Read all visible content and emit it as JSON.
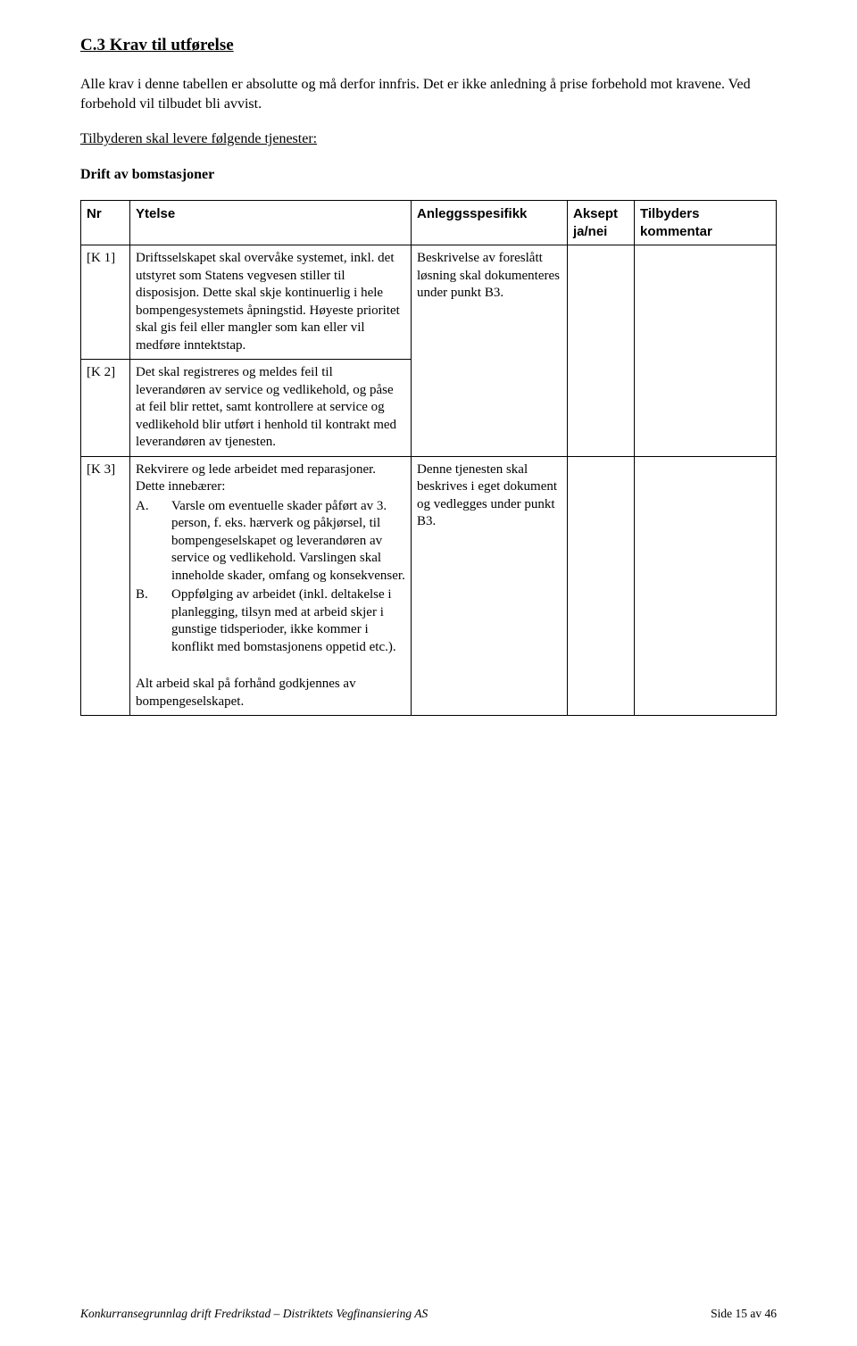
{
  "heading": "C.3  Krav til utførelse",
  "intro1": "Alle krav i denne tabellen er absolutte og må derfor innfris. Det er ikke anledning å prise forbehold mot kravene. Ved forbehold vil tilbudet bli avvist.",
  "intro2": "Tilbyderen skal levere følgende tjenester:",
  "subheading": "Drift av bomstasjoner",
  "table": {
    "headers": {
      "nr": "Nr",
      "ytelse": "Ytelse",
      "anlegg": "Anleggsspesifikk",
      "aksept_l1": "Aksept",
      "aksept_l2": "ja/nei",
      "tilbyder_l1": "Tilbyders",
      "tilbyder_l2": "kommentar"
    },
    "rows": [
      {
        "nr": "[K 1]",
        "ytelse": "Driftsselskapet skal overvåke systemet, inkl. det utstyret som Statens vegvesen stiller til disposisjon. Dette skal skje kontinuerlig i hele bompengesystemets åpningstid. Høyeste prioritet skal gis feil eller mangler som kan eller vil medføre inntektstap.",
        "anlegg": "Beskrivelse av foreslått løsning skal dokumenteres under punkt B3."
      },
      {
        "nr": "[K 2]",
        "ytelse": "Det skal registreres og meldes feil til leverandøren av service og vedlikehold, og påse at feil blir rettet, samt kontrollere at service og vedlikehold blir utført i henhold til kontrakt med leverandøren av tjenesten.",
        "anlegg": ""
      },
      {
        "nr": "[K 3]",
        "ytelse_lead": "Rekvirere og lede arbeidet med reparasjoner.",
        "ytelse_sub": "Dette innebærer:",
        "items": [
          {
            "marker": "A.",
            "text": "Varsle om eventuelle skader påført av 3. person, f. eks. hærverk og påkjørsel, til bompengeselskapet og leverandøren av service og vedlikehold. Varslingen skal inneholde skader, omfang og konsekvenser."
          },
          {
            "marker": "B.",
            "text": "Oppfølging av arbeidet (inkl. deltakelse i planlegging, tilsyn med at arbeid skjer i gunstige tidsperioder, ikke kommer i konflikt med bomstasjonens oppetid etc.)."
          }
        ],
        "ytelse_tail": "Alt arbeid skal på forhånd godkjennes av bompengeselskapet.",
        "anlegg": "Denne tjenesten skal beskrives i eget dokument og vedlegges under punkt B3."
      }
    ]
  },
  "footer_left": "Konkurransegrunnlag drift Fredrikstad – Distriktets Vegfinansiering AS",
  "footer_right": "Side 15 av 46"
}
